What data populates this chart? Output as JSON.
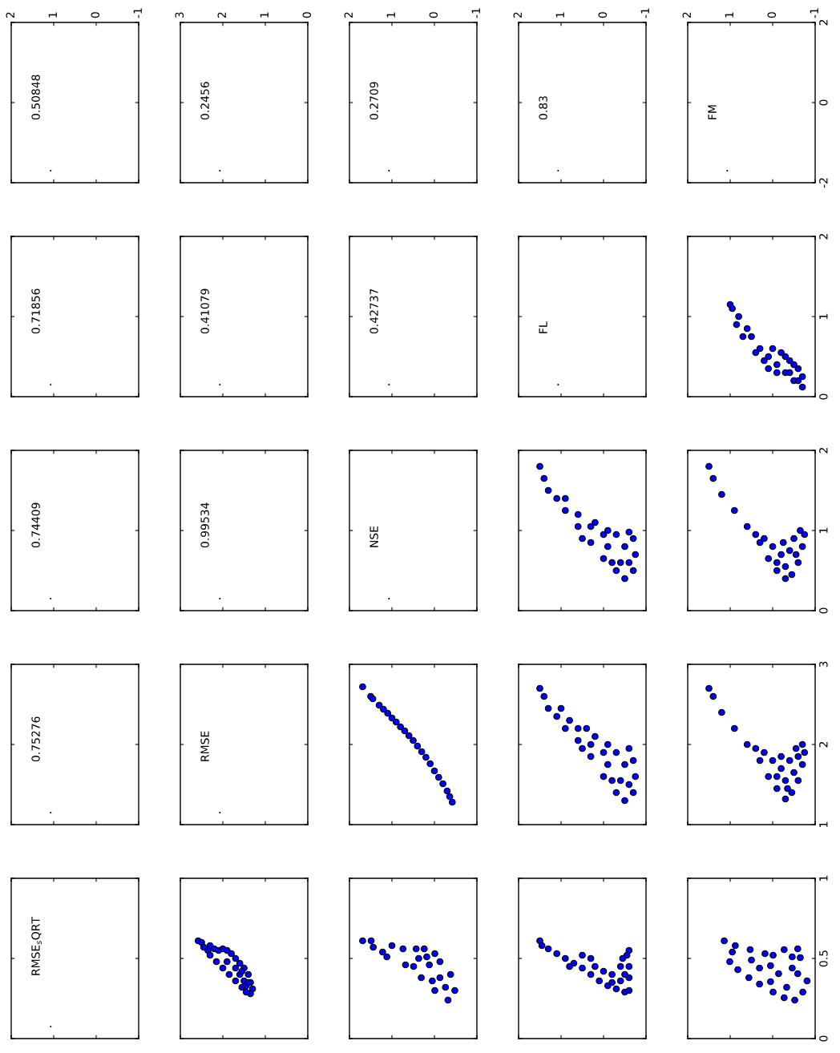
{
  "chart_data": [
    {
      "type": "scatter",
      "marker": "circle",
      "color": "#000000",
      "x": [
        1.07
      ],
      "values": [
        -1.7
      ],
      "annotations": [
        "0.50848"
      ],
      "xlim": [
        2,
        -1
      ],
      "xticks": [
        2,
        1,
        0,
        -1
      ],
      "ylim": [
        -2,
        2
      ],
      "yticks": [
        -2,
        0,
        2
      ],
      "tick_labels": "x"
    },
    {
      "type": "scatter",
      "marker": "circle",
      "color": "#000000",
      "x": [
        2.07
      ],
      "values": [
        -1.7
      ],
      "annotations": [
        "0.2456"
      ],
      "xlim": [
        3,
        0
      ],
      "xticks": [
        3,
        2,
        1,
        0
      ],
      "ylim": [
        -2,
        2
      ],
      "yticks": [
        -2,
        0,
        2
      ],
      "tick_labels": "x"
    },
    {
      "type": "scatter",
      "marker": "circle",
      "color": "#000000",
      "x": [
        1.07
      ],
      "values": [
        -1.7
      ],
      "annotations": [
        "0.2709"
      ],
      "xlim": [
        2,
        -1
      ],
      "xticks": [
        2,
        1,
        0,
        -1
      ],
      "ylim": [
        -2,
        2
      ],
      "yticks": [
        -2,
        0,
        2
      ],
      "tick_labels": "x"
    },
    {
      "type": "scatter",
      "marker": "circle",
      "color": "#000000",
      "x": [
        1.07
      ],
      "values": [
        -1.7
      ],
      "annotations": [
        "0.83"
      ],
      "xlim": [
        2,
        -1
      ],
      "xticks": [
        2,
        1,
        0,
        -1
      ],
      "ylim": [
        -2,
        2
      ],
      "yticks": [
        -2,
        0,
        2
      ],
      "tick_labels": "x"
    },
    {
      "type": "scatter",
      "marker": "circle",
      "color": "#000000",
      "x": [
        1.07
      ],
      "values": [
        -1.7
      ],
      "annotations": [
        "FM"
      ],
      "xlim": [
        2,
        -1
      ],
      "xticks": [
        2,
        1,
        0,
        -1
      ],
      "ylim": [
        -2,
        2
      ],
      "yticks": [
        -2,
        0,
        2
      ]
    },
    {
      "type": "scatter",
      "marker": "circle",
      "color": "#000000",
      "x": [
        1.07
      ],
      "values": [
        0.15
      ],
      "annotations": [
        "0.71856"
      ],
      "xlim": [
        2,
        -1
      ],
      "xticks": [
        2,
        1,
        0,
        -1
      ],
      "ylim": [
        0,
        2
      ],
      "yticks": [
        0,
        1,
        2
      ],
      "tick_labels": false
    },
    {
      "type": "scatter",
      "marker": "circle",
      "color": "#000000",
      "x": [
        2.07
      ],
      "values": [
        0.15
      ],
      "annotations": [
        "0.41079"
      ],
      "xlim": [
        3,
        0
      ],
      "xticks": [
        3,
        2,
        1,
        0
      ],
      "ylim": [
        0,
        2
      ],
      "yticks": [
        0,
        1,
        2
      ],
      "tick_labels": false
    },
    {
      "type": "scatter",
      "marker": "circle",
      "color": "#000000",
      "x": [
        1.07
      ],
      "values": [
        0.15
      ],
      "annotations": [
        "0.42737"
      ],
      "xlim": [
        2,
        -1
      ],
      "xticks": [
        2,
        1,
        0,
        -1
      ],
      "ylim": [
        0,
        2
      ],
      "yticks": [
        0,
        1,
        2
      ],
      "tick_labels": false
    },
    {
      "type": "scatter",
      "marker": "circle",
      "color": "#000000",
      "x": [
        1.07
      ],
      "values": [
        0.15
      ],
      "annotations": [
        "FL"
      ],
      "xlim": [
        2,
        -1
      ],
      "xticks": [
        2,
        1,
        0,
        -1
      ],
      "ylim": [
        0,
        2
      ],
      "yticks": [
        0,
        1,
        2
      ],
      "tick_labels": false
    },
    {
      "type": "scatter",
      "marker": "circle",
      "color": "#0000ff",
      "xlim": [
        2,
        -1
      ],
      "xticks": [
        2,
        1,
        0,
        -1
      ],
      "ylim": [
        0,
        2
      ],
      "yticks": [
        0,
        1,
        2
      ],
      "tick_labels": "y",
      "x": [
        1.0,
        0.95,
        0.8,
        0.6,
        0.5,
        0.3,
        0.1,
        -0.1,
        -0.3,
        -0.5,
        -0.7,
        -0.7,
        -0.6,
        -0.4,
        -0.2,
        0.0,
        -0.5,
        -0.3,
        -0.1,
        0.2,
        0.4,
        0.7,
        0.85,
        -0.6,
        -0.4,
        0.1
      ],
      "values": [
        1.15,
        1.1,
        1.0,
        0.85,
        0.75,
        0.6,
        0.5,
        0.4,
        0.3,
        0.2,
        0.12,
        0.25,
        0.35,
        0.45,
        0.55,
        0.6,
        0.4,
        0.5,
        0.3,
        0.45,
        0.55,
        0.75,
        0.9,
        0.2,
        0.3,
        0.35
      ]
    },
    {
      "type": "scatter",
      "marker": "circle",
      "color": "#000000",
      "x": [
        1.07
      ],
      "values": [
        0.15
      ],
      "annotations": [
        "0.74409"
      ],
      "xlim": [
        2,
        -1
      ],
      "xticks": [
        2,
        1,
        0,
        -1
      ],
      "ylim": [
        0,
        2
      ],
      "yticks": [
        0,
        1,
        2
      ],
      "tick_labels": false
    },
    {
      "type": "scatter",
      "marker": "circle",
      "color": "#000000",
      "x": [
        2.07
      ],
      "values": [
        0.15
      ],
      "annotations": [
        "0.99534"
      ],
      "xlim": [
        3,
        0
      ],
      "xticks": [
        3,
        2,
        1,
        0
      ],
      "ylim": [
        0,
        2
      ],
      "yticks": [
        0,
        1,
        2
      ],
      "tick_labels": false
    },
    {
      "type": "scatter",
      "marker": "circle",
      "color": "#000000",
      "x": [
        1.07
      ],
      "values": [
        0.15
      ],
      "annotations": [
        "NSE"
      ],
      "xlim": [
        2,
        -1
      ],
      "xticks": [
        2,
        1,
        0,
        -1
      ],
      "ylim": [
        0,
        2
      ],
      "yticks": [
        0,
        1,
        2
      ],
      "tick_labels": false
    },
    {
      "type": "scatter",
      "marker": "circle",
      "color": "#0000ff",
      "xlim": [
        2,
        -1
      ],
      "xticks": [
        2,
        1,
        0,
        -1
      ],
      "ylim": [
        0,
        2
      ],
      "yticks": [
        0,
        1,
        2
      ],
      "tick_labels": false,
      "x": [
        1.5,
        1.4,
        1.3,
        1.1,
        0.9,
        0.6,
        0.3,
        0.0,
        -0.3,
        -0.5,
        -0.7,
        -0.75,
        -0.7,
        -0.6,
        -0.5,
        -0.3,
        -0.1,
        0.2,
        -0.4,
        -0.1,
        0.3,
        0.6,
        -0.6,
        0.0,
        -0.2,
        0.9,
        0.5
      ],
      "values": [
        1.8,
        1.65,
        1.5,
        1.4,
        1.25,
        1.05,
        0.85,
        0.65,
        0.5,
        0.4,
        0.5,
        0.7,
        0.9,
        0.98,
        0.8,
        0.95,
        1.0,
        1.1,
        0.6,
        0.8,
        1.05,
        1.2,
        0.6,
        0.95,
        0.6,
        1.4,
        0.9
      ]
    },
    {
      "type": "scatter",
      "marker": "circle",
      "color": "#0000ff",
      "xlim": [
        2,
        -1
      ],
      "xticks": [
        2,
        1,
        0,
        -1
      ],
      "ylim": [
        0,
        2
      ],
      "yticks": [
        0,
        1,
        2
      ],
      "tick_labels": "y",
      "x": [
        1.5,
        1.4,
        1.2,
        0.9,
        0.6,
        0.3,
        0.1,
        -0.1,
        -0.3,
        -0.45,
        -0.6,
        -0.7,
        -0.75,
        -0.65,
        -0.5,
        -0.4,
        -0.2,
        0.0,
        -0.3,
        -0.55,
        -0.1,
        0.2,
        0.4,
        -0.25
      ],
      "values": [
        1.8,
        1.65,
        1.45,
        1.25,
        1.05,
        0.85,
        0.65,
        0.5,
        0.4,
        0.45,
        0.6,
        0.8,
        0.95,
        1.0,
        0.9,
        0.75,
        0.7,
        0.8,
        0.55,
        0.7,
        0.6,
        0.9,
        0.95,
        0.85
      ]
    },
    {
      "type": "scatter",
      "marker": "circle",
      "color": "#000000",
      "x": [
        1.07
      ],
      "values": [
        1.15
      ],
      "annotations": [
        "0.75276"
      ],
      "xlim": [
        2,
        -1
      ],
      "xticks": [
        2,
        1,
        0,
        -1
      ],
      "ylim": [
        1,
        3
      ],
      "yticks": [
        1,
        2,
        3
      ],
      "tick_labels": false
    },
    {
      "type": "scatter",
      "marker": "circle",
      "color": "#000000",
      "x": [
        2.07
      ],
      "values": [
        1.15
      ],
      "annotations": [
        "RMSE"
      ],
      "xlim": [
        3,
        0
      ],
      "xticks": [
        3,
        2,
        1,
        0
      ],
      "ylim": [
        1,
        3
      ],
      "yticks": [
        1,
        2,
        3
      ],
      "tick_labels": false
    },
    {
      "type": "scatter",
      "marker": "circle",
      "color": "#0000ff",
      "xlim": [
        2,
        -1
      ],
      "xticks": [
        2,
        1,
        0,
        -1
      ],
      "ylim": [
        1,
        3
      ],
      "yticks": [
        1,
        2,
        3
      ],
      "tick_labels": false,
      "x": [
        1.69,
        1.5,
        1.45,
        1.3,
        1.2,
        1.1,
        1.0,
        0.9,
        0.8,
        0.7,
        0.6,
        0.5,
        0.4,
        0.3,
        0.2,
        0.1,
        0.0,
        -0.1,
        -0.2,
        -0.3,
        -0.36,
        -0.42
      ],
      "values": [
        2.72,
        2.6,
        2.57,
        2.49,
        2.44,
        2.39,
        2.33,
        2.28,
        2.22,
        2.17,
        2.11,
        2.05,
        1.98,
        1.91,
        1.84,
        1.76,
        1.67,
        1.59,
        1.51,
        1.42,
        1.35,
        1.28
      ]
    },
    {
      "type": "scatter",
      "marker": "circle",
      "color": "#0000ff",
      "xlim": [
        2,
        -1
      ],
      "xticks": [
        2,
        1,
        0,
        -1
      ],
      "ylim": [
        1,
        3
      ],
      "yticks": [
        1,
        2,
        3
      ],
      "tick_labels": false,
      "x": [
        1.5,
        1.4,
        1.3,
        1.1,
        0.9,
        0.6,
        0.3,
        0.0,
        -0.3,
        -0.5,
        -0.7,
        -0.75,
        -0.7,
        -0.6,
        -0.5,
        -0.3,
        -0.1,
        0.2,
        -0.4,
        -0.1,
        0.3,
        0.6,
        0.8,
        -0.6,
        0.0,
        0.5,
        0.4,
        -0.2,
        1.0
      ],
      "values": [
        2.7,
        2.6,
        2.45,
        2.35,
        2.2,
        2.05,
        1.85,
        1.6,
        1.4,
        1.3,
        1.4,
        1.6,
        1.8,
        1.95,
        1.75,
        1.9,
        2.0,
        2.1,
        1.55,
        1.75,
        2.0,
        2.2,
        2.3,
        1.5,
        1.9,
        1.95,
        2.2,
        1.55,
        2.45
      ]
    },
    {
      "type": "scatter",
      "marker": "circle",
      "color": "#0000ff",
      "xlim": [
        2,
        -1
      ],
      "xticks": [
        2,
        1,
        0,
        -1
      ],
      "ylim": [
        1,
        3
      ],
      "yticks": [
        1,
        2,
        3
      ],
      "tick_labels": "y",
      "x": [
        1.5,
        1.4,
        1.2,
        0.9,
        0.6,
        0.3,
        0.1,
        -0.1,
        -0.3,
        -0.45,
        -0.6,
        -0.7,
        -0.75,
        -0.7,
        -0.55,
        -0.4,
        -0.2,
        0.0,
        -0.3,
        -0.5,
        -0.1,
        0.2,
        -0.6,
        -0.35,
        0.4,
        -0.2
      ],
      "values": [
        2.7,
        2.6,
        2.4,
        2.2,
        2.0,
        1.8,
        1.6,
        1.45,
        1.32,
        1.4,
        1.55,
        1.75,
        1.9,
        2.0,
        1.95,
        1.8,
        1.7,
        1.8,
        1.55,
        1.65,
        1.6,
        1.9,
        1.85,
        1.45,
        1.95,
        1.85
      ]
    },
    {
      "type": "scatter",
      "marker": "circle",
      "color": "#000000",
      "x": [
        1.07
      ],
      "values": [
        0.075
      ],
      "annotations": [
        "RMSE$_{s}$QRT"
      ],
      "xlim": [
        2,
        -1
      ],
      "xticks": [
        2,
        1,
        0,
        -1
      ],
      "ylim": [
        0,
        1
      ],
      "yticks": [
        0,
        0.5,
        1
      ],
      "tick_labels": false
    },
    {
      "type": "scatter",
      "marker": "circle",
      "color": "#0000ff",
      "xlim": [
        3,
        0
      ],
      "xticks": [
        3,
        2,
        1,
        0
      ],
      "ylim": [
        0,
        1
      ],
      "yticks": [
        0,
        0.5,
        1
      ],
      "tick_labels": false,
      "x": [
        2.58,
        2.5,
        2.45,
        2.35,
        2.3,
        2.2,
        2.1,
        2.0,
        1.9,
        1.8,
        1.7,
        1.6,
        1.5,
        1.4,
        1.35,
        1.3,
        1.35,
        1.45,
        1.55,
        1.7,
        1.85,
        2.0,
        2.15,
        2.3,
        1.6,
        1.5,
        1.45,
        1.7,
        1.9,
        1.55,
        1.4
      ],
      "values": [
        0.61,
        0.6,
        0.57,
        0.55,
        0.58,
        0.56,
        0.55,
        0.56,
        0.55,
        0.53,
        0.5,
        0.47,
        0.44,
        0.4,
        0.35,
        0.31,
        0.28,
        0.29,
        0.32,
        0.36,
        0.4,
        0.44,
        0.48,
        0.52,
        0.4,
        0.36,
        0.33,
        0.44,
        0.48,
        0.42,
        0.35
      ]
    },
    {
      "type": "scatter",
      "marker": "circle",
      "color": "#0000ff",
      "xlim": [
        2,
        -1
      ],
      "xticks": [
        2,
        1,
        0,
        -1
      ],
      "ylim": [
        0,
        1
      ],
      "yticks": [
        0,
        0.5,
        1
      ],
      "tick_labels": false,
      "x": [
        1.69,
        1.49,
        1.44,
        1.22,
        1.0,
        1.12,
        0.74,
        0.43,
        0.24,
        -0.13,
        -0.38,
        -0.48,
        -0.32,
        -0.01,
        0.31,
        0.49,
        0.68,
        0.12,
        -0.13,
        0.05,
        -0.26,
        0.18,
        -0.01,
        0.37
      ],
      "values": [
        0.61,
        0.61,
        0.57,
        0.54,
        0.58,
        0.51,
        0.56,
        0.56,
        0.56,
        0.48,
        0.4,
        0.3,
        0.24,
        0.3,
        0.38,
        0.45,
        0.46,
        0.46,
        0.38,
        0.36,
        0.32,
        0.51,
        0.53,
        0.5
      ]
    },
    {
      "type": "scatter",
      "marker": "circle",
      "color": "#0000ff",
      "xlim": [
        2,
        -1
      ],
      "xticks": [
        2,
        1,
        0,
        -1
      ],
      "ylim": [
        0,
        1
      ],
      "yticks": [
        0,
        0.5,
        1
      ],
      "tick_labels": false,
      "x": [
        1.5,
        1.45,
        1.3,
        1.1,
        0.9,
        0.7,
        0.5,
        0.3,
        0.1,
        -0.1,
        -0.3,
        -0.5,
        -0.6,
        -0.6,
        -0.6,
        -0.55,
        -0.6,
        -0.4,
        -0.2,
        0.0,
        -0.4,
        -0.2,
        0.2,
        0.5,
        0.3,
        -0.45,
        0.8,
        -0.5
      ],
      "values": [
        0.61,
        0.58,
        0.56,
        0.53,
        0.5,
        0.47,
        0.44,
        0.4,
        0.36,
        0.33,
        0.31,
        0.29,
        0.3,
        0.38,
        0.45,
        0.52,
        0.55,
        0.45,
        0.4,
        0.42,
        0.36,
        0.35,
        0.45,
        0.52,
        0.5,
        0.5,
        0.45,
        0.4
      ]
    },
    {
      "type": "scatter",
      "marker": "circle",
      "color": "#0000ff",
      "xlim": [
        2,
        -1
      ],
      "xticks": [
        2,
        1,
        0,
        -1
      ],
      "ylim": [
        0,
        1
      ],
      "yticks": [
        0,
        0.5,
        1
      ],
      "tick_labels": "y",
      "x": [
        1.14,
        0.88,
        0.53,
        0.18,
        -0.01,
        -0.27,
        -0.59,
        -0.65,
        -0.81,
        -0.71,
        -0.52,
        -0.27,
        -0.01,
        0.31,
        0.56,
        0.82,
        1.01,
        0.95,
        -0.14,
        -0.46,
        0.05,
        0.31,
        -0.33,
        -0.59,
        0.5,
        0.05,
        -0.46
      ],
      "values": [
        0.61,
        0.58,
        0.555,
        0.53,
        0.52,
        0.555,
        0.56,
        0.505,
        0.36,
        0.29,
        0.24,
        0.255,
        0.29,
        0.34,
        0.38,
        0.43,
        0.48,
        0.54,
        0.405,
        0.44,
        0.455,
        0.44,
        0.32,
        0.405,
        0.49,
        0.355,
        0.51
      ]
    }
  ]
}
